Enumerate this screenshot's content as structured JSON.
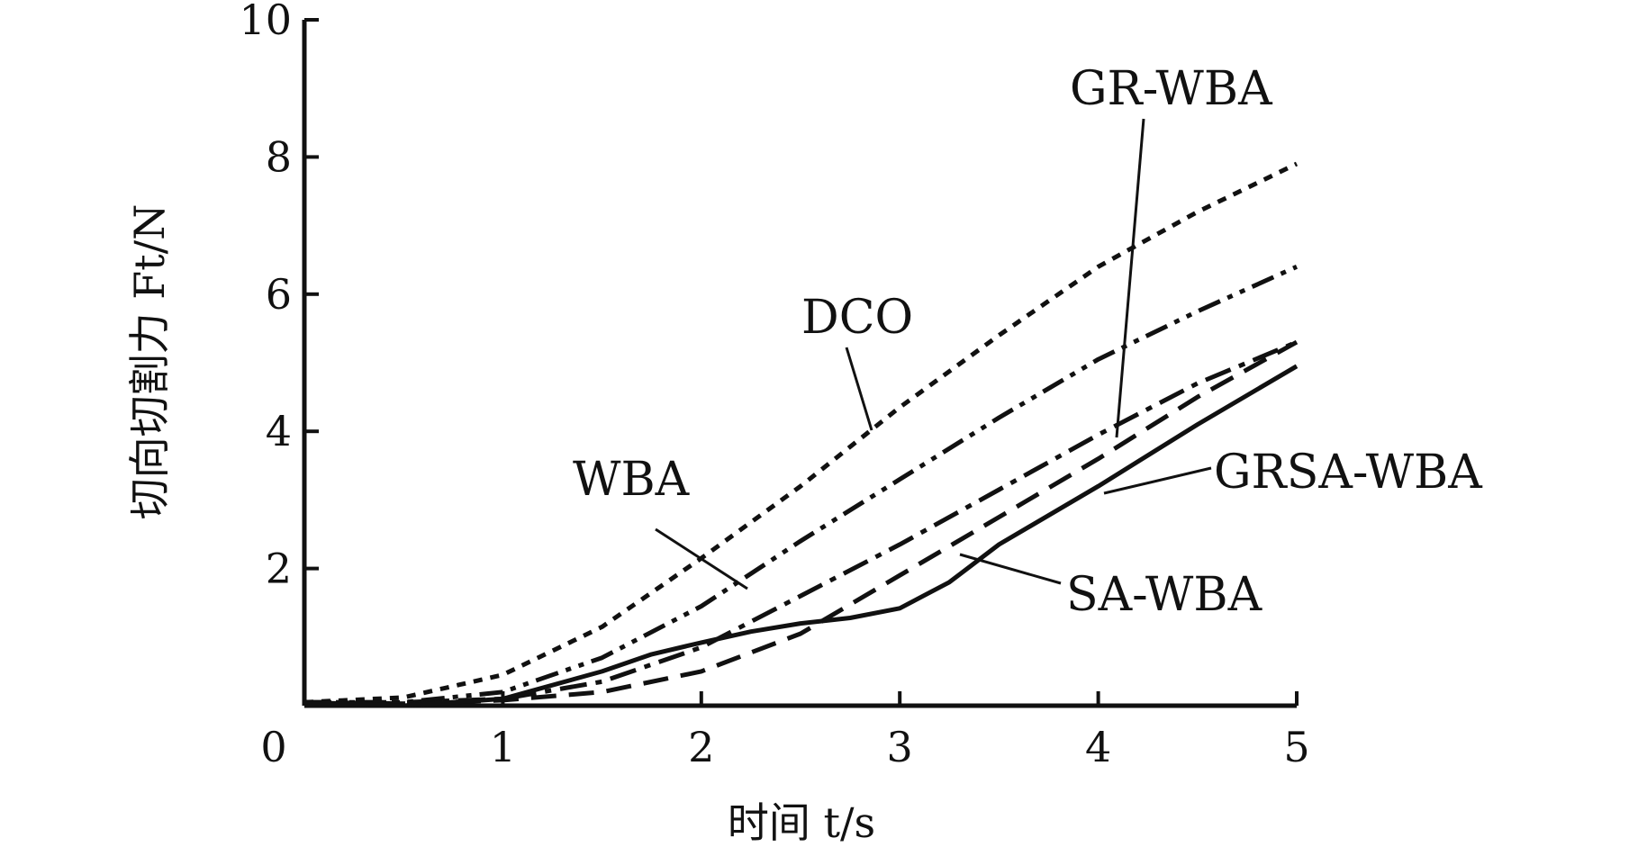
{
  "chart_data": {
    "type": "line",
    "xlabel": "时间 t/s",
    "ylabel": "切向切割力 Ft/N",
    "xlim": [
      0,
      5
    ],
    "ylim": [
      0,
      10
    ],
    "x_ticks": [
      "0",
      "1",
      "2",
      "3",
      "4",
      "5"
    ],
    "y_ticks": [
      "2",
      "4",
      "6",
      "8",
      "10"
    ],
    "grid": false,
    "series": [
      {
        "name": "DCO",
        "style": "dotted",
        "x": [
          0,
          0.5,
          1.0,
          1.5,
          2.0,
          2.5,
          3.0,
          3.5,
          4.0,
          4.5,
          5.0
        ],
        "y": [
          0.05,
          0.12,
          0.45,
          1.15,
          2.15,
          3.2,
          4.35,
          5.4,
          6.4,
          7.2,
          7.9
        ]
      },
      {
        "name": "WBA",
        "style": "dash-dot-dot",
        "x": [
          0,
          0.5,
          1.0,
          1.5,
          2.0,
          2.5,
          3.0,
          3.5,
          4.0,
          4.5,
          5.0
        ],
        "y": [
          0.05,
          0.05,
          0.2,
          0.7,
          1.45,
          2.4,
          3.3,
          4.2,
          5.05,
          5.75,
          6.4
        ]
      },
      {
        "name": "GR-WBA",
        "style": "dash-dot",
        "x": [
          0,
          0.5,
          1.0,
          1.5,
          2.0,
          2.5,
          3.0,
          3.5,
          4.0,
          4.5,
          5.0
        ],
        "y": [
          0.05,
          0.05,
          0.1,
          0.35,
          0.85,
          1.6,
          2.35,
          3.15,
          3.95,
          4.7,
          5.3
        ]
      },
      {
        "name": "SA-WBA",
        "style": "dashed",
        "x": [
          0,
          0.5,
          1.0,
          1.5,
          2.0,
          2.5,
          3.0,
          3.5,
          4.0,
          4.5,
          5.0
        ],
        "y": [
          0.05,
          0.03,
          0.08,
          0.2,
          0.5,
          1.05,
          1.9,
          2.75,
          3.6,
          4.5,
          5.3
        ]
      },
      {
        "name": "GRSA-WBA",
        "style": "solid",
        "x": [
          0,
          0.5,
          1.0,
          1.5,
          1.75,
          2.0,
          2.25,
          2.5,
          2.75,
          3.0,
          3.25,
          3.5,
          4.0,
          4.5,
          5.0
        ],
        "y": [
          0.05,
          0.0,
          0.1,
          0.5,
          0.75,
          0.92,
          1.08,
          1.2,
          1.28,
          1.42,
          1.8,
          2.35,
          3.2,
          4.1,
          4.95
        ]
      }
    ]
  }
}
